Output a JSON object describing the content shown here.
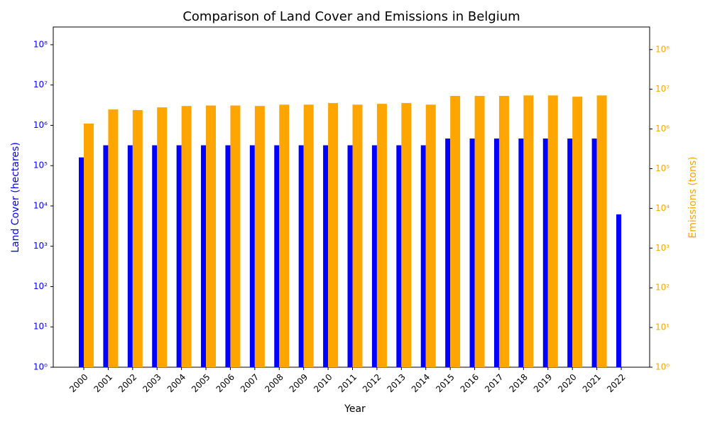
{
  "chart_data": {
    "type": "bar",
    "title": "Comparison of Land Cover and Emissions in Belgium",
    "xlabel": "Year",
    "ylabel": "Land Cover (hectares)",
    "y2label": "Emissions (tons)",
    "categories": [
      "2000",
      "2001",
      "2002",
      "2003",
      "2004",
      "2005",
      "2006",
      "2007",
      "2008",
      "2009",
      "2010",
      "2011",
      "2012",
      "2013",
      "2014",
      "2015",
      "2016",
      "2017",
      "2018",
      "2019",
      "2020",
      "2021",
      "2022"
    ],
    "series": [
      {
        "color": "blue",
        "values": [
          160000,
          320000,
          320000,
          320000,
          320000,
          320000,
          320000,
          320000,
          320000,
          320000,
          320000,
          320000,
          320000,
          320000,
          320000,
          470000,
          470000,
          470000,
          470000,
          470000,
          470000,
          470000,
          6200
        ]
      },
      {
        "color": "orange",
        "axis": "y2",
        "values": [
          1370000,
          3100000,
          3000000,
          3500000,
          3800000,
          3900000,
          3900000,
          3800000,
          4100000,
          4100000,
          4500000,
          4100000,
          4300000,
          4500000,
          4100000,
          6800000,
          6800000,
          6800000,
          7000000,
          7000000,
          6500000,
          7000000,
          null
        ]
      }
    ],
    "log_scale": true,
    "ylim": [
      1,
      275000000
    ],
    "yticks": [
      {
        "value": 1,
        "label": "10⁰"
      },
      {
        "value": 10,
        "label": "10¹"
      },
      {
        "value": 100,
        "label": "10²"
      },
      {
        "value": 1000,
        "label": "10³"
      },
      {
        "value": 10000,
        "label": "10⁴"
      },
      {
        "value": 100000,
        "label": "10⁵"
      },
      {
        "value": 1000000,
        "label": "10⁶"
      },
      {
        "value": 10000000,
        "label": "10⁷"
      },
      {
        "value": 100000000,
        "label": "10⁸"
      }
    ],
    "y2lim": [
      1,
      370000000
    ],
    "y2ticks": [
      {
        "value": 1,
        "label": "10⁰"
      },
      {
        "value": 10,
        "label": "10¹"
      },
      {
        "value": 100,
        "label": "10²"
      },
      {
        "value": 1000,
        "label": "10³"
      },
      {
        "value": 10000,
        "label": "10⁴"
      },
      {
        "value": 100000,
        "label": "10⁵"
      },
      {
        "value": 1000000,
        "label": "10⁶"
      },
      {
        "value": 10000000,
        "label": "10⁷"
      },
      {
        "value": 100000000,
        "label": "10⁸"
      }
    ]
  }
}
